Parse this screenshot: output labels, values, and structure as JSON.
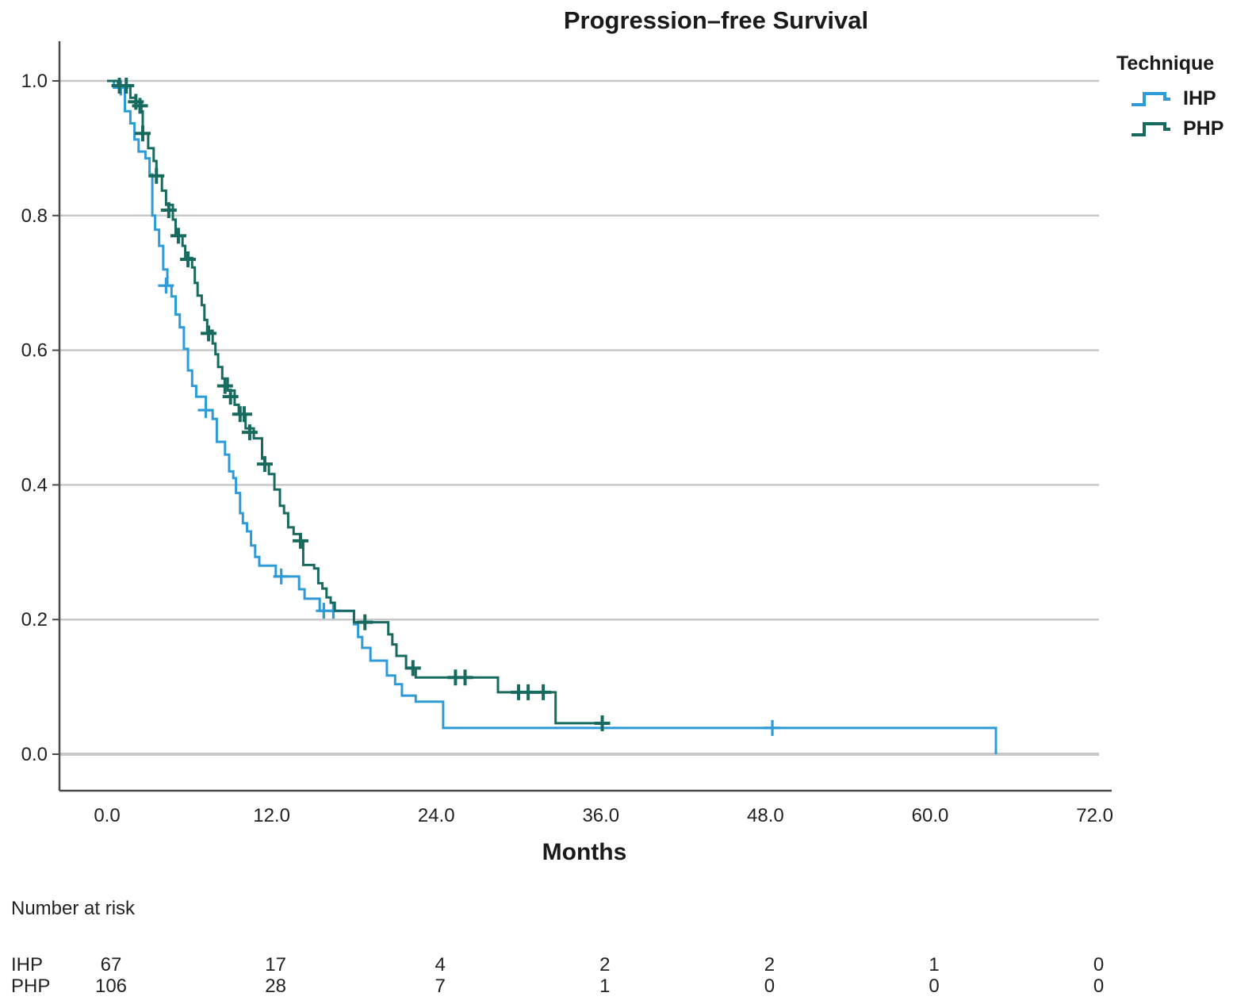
{
  "title": "Progression–free Survival",
  "legend": {
    "title": "Technique",
    "items": [
      {
        "label": "IHP",
        "color": "#2e9bd9"
      },
      {
        "label": "PHP",
        "color": "#176a5e"
      }
    ]
  },
  "chart_data": {
    "type": "line",
    "subtype": "kaplan-meier-step",
    "title": "Progression–free Survival",
    "xlabel": "Months",
    "ylabel": "",
    "xlim": [
      0,
      72
    ],
    "ylim": [
      0.0,
      1.0
    ],
    "xticks": [
      0,
      12,
      24,
      36,
      48,
      60,
      72
    ],
    "xtick_labels": [
      "0.0",
      "12.0",
      "24.0",
      "36.0",
      "48.0",
      "60.0",
      "72.0"
    ],
    "yticks": [
      0.0,
      0.2,
      0.4,
      0.6,
      0.8,
      1.0
    ],
    "ytick_labels": [
      "0.0",
      "0.2",
      "0.4",
      "0.6",
      "0.8",
      "1.0"
    ],
    "grid": "horizontal",
    "grid_color": "#c8c8c8",
    "axis_color": "#4a4a4a",
    "legend_position": "top-right",
    "series": [
      {
        "name": "IHP",
        "color": "#2e9bd9",
        "censor_marker": "plus",
        "steps": [
          [
            0,
            1.0
          ],
          [
            0.5,
            0.99
          ],
          [
            1.3,
            0.955
          ],
          [
            1.7,
            0.937
          ],
          [
            2.0,
            0.913
          ],
          [
            2.3,
            0.895
          ],
          [
            2.8,
            0.885
          ],
          [
            3.1,
            0.861
          ],
          [
            3.3,
            0.8
          ],
          [
            3.5,
            0.779
          ],
          [
            3.8,
            0.755
          ],
          [
            4.1,
            0.72
          ],
          [
            4.4,
            0.696
          ],
          [
            4.7,
            0.68
          ],
          [
            5.0,
            0.653
          ],
          [
            5.3,
            0.634
          ],
          [
            5.6,
            0.602
          ],
          [
            5.9,
            0.57
          ],
          [
            6.2,
            0.547
          ],
          [
            6.5,
            0.531
          ],
          [
            7.2,
            0.511
          ],
          [
            7.7,
            0.498
          ],
          [
            8.0,
            0.464
          ],
          [
            8.6,
            0.445
          ],
          [
            8.9,
            0.42
          ],
          [
            9.2,
            0.41
          ],
          [
            9.4,
            0.388
          ],
          [
            9.7,
            0.358
          ],
          [
            9.9,
            0.343
          ],
          [
            10.2,
            0.331
          ],
          [
            10.5,
            0.31
          ],
          [
            10.8,
            0.293
          ],
          [
            11.1,
            0.28
          ],
          [
            12.3,
            0.264
          ],
          [
            14.0,
            0.245
          ],
          [
            14.4,
            0.231
          ],
          [
            15.5,
            0.213
          ],
          [
            18.0,
            0.193
          ],
          [
            18.3,
            0.174
          ],
          [
            18.6,
            0.158
          ],
          [
            19.2,
            0.139
          ],
          [
            20.4,
            0.117
          ],
          [
            21.0,
            0.104
          ],
          [
            21.5,
            0.087
          ],
          [
            22.5,
            0.078
          ],
          [
            24.5,
            0.039
          ],
          [
            64.8,
            0.0
          ]
        ],
        "censors": [
          [
            1.0,
            0.99
          ],
          [
            4.3,
            0.696
          ],
          [
            7.2,
            0.511
          ],
          [
            12.7,
            0.264
          ],
          [
            15.8,
            0.213
          ],
          [
            16.5,
            0.213
          ],
          [
            48.5,
            0.039
          ]
        ]
      },
      {
        "name": "PHP",
        "color": "#176a5e",
        "censor_marker": "plus",
        "steps": [
          [
            0,
            1.0
          ],
          [
            0.8,
            0.993
          ],
          [
            1.7,
            0.975
          ],
          [
            2.1,
            0.969
          ],
          [
            2.5,
            0.955
          ],
          [
            2.6,
            0.922
          ],
          [
            3.0,
            0.9
          ],
          [
            3.4,
            0.881
          ],
          [
            3.6,
            0.859
          ],
          [
            4.0,
            0.837
          ],
          [
            4.3,
            0.816
          ],
          [
            4.8,
            0.794
          ],
          [
            5.0,
            0.77
          ],
          [
            5.5,
            0.755
          ],
          [
            5.7,
            0.737
          ],
          [
            6.2,
            0.723
          ],
          [
            6.4,
            0.7
          ],
          [
            6.6,
            0.681
          ],
          [
            6.9,
            0.667
          ],
          [
            7.1,
            0.645
          ],
          [
            7.3,
            0.629
          ],
          [
            7.7,
            0.61
          ],
          [
            7.9,
            0.594
          ],
          [
            8.1,
            0.575
          ],
          [
            8.4,
            0.558
          ],
          [
            8.8,
            0.54
          ],
          [
            9.3,
            0.519
          ],
          [
            9.6,
            0.505
          ],
          [
            10.1,
            0.484
          ],
          [
            10.7,
            0.469
          ],
          [
            11.3,
            0.439
          ],
          [
            11.5,
            0.431
          ],
          [
            11.8,
            0.416
          ],
          [
            12.2,
            0.393
          ],
          [
            12.6,
            0.369
          ],
          [
            12.9,
            0.358
          ],
          [
            13.2,
            0.337
          ],
          [
            13.6,
            0.327
          ],
          [
            14.1,
            0.317
          ],
          [
            14.3,
            0.281
          ],
          [
            15.1,
            0.276
          ],
          [
            15.4,
            0.254
          ],
          [
            15.7,
            0.246
          ],
          [
            16.0,
            0.233
          ],
          [
            16.3,
            0.225
          ],
          [
            16.6,
            0.213
          ],
          [
            18.0,
            0.196
          ],
          [
            20.5,
            0.178
          ],
          [
            20.8,
            0.163
          ],
          [
            21.1,
            0.146
          ],
          [
            21.8,
            0.128
          ],
          [
            22.5,
            0.114
          ],
          [
            28.5,
            0.092
          ],
          [
            32.7,
            0.046
          ],
          [
            36.5,
            0.046
          ]
        ],
        "censors": [
          [
            0.9,
            0.993
          ],
          [
            1.4,
            0.993
          ],
          [
            2.1,
            0.969
          ],
          [
            2.4,
            0.963
          ],
          [
            2.6,
            0.922
          ],
          [
            3.6,
            0.859
          ],
          [
            4.5,
            0.808
          ],
          [
            5.2,
            0.77
          ],
          [
            5.9,
            0.735
          ],
          [
            7.4,
            0.625
          ],
          [
            8.6,
            0.547
          ],
          [
            9.0,
            0.531
          ],
          [
            9.7,
            0.505
          ],
          [
            10.0,
            0.505
          ],
          [
            10.4,
            0.478
          ],
          [
            11.5,
            0.431
          ],
          [
            14.1,
            0.317
          ],
          [
            18.8,
            0.196
          ],
          [
            22.3,
            0.128
          ],
          [
            25.4,
            0.114
          ],
          [
            26.1,
            0.114
          ],
          [
            30.0,
            0.092
          ],
          [
            30.7,
            0.092
          ],
          [
            31.8,
            0.092
          ],
          [
            36.1,
            0.046
          ]
        ]
      }
    ]
  },
  "at_risk": {
    "heading": "Number at risk",
    "columns_months": [
      0,
      12,
      24,
      36,
      48,
      60,
      72
    ],
    "rows": [
      {
        "label": "IHP",
        "values": [
          "67",
          "17",
          "4",
          "2",
          "2",
          "1",
          "0"
        ]
      },
      {
        "label": "PHP",
        "values": [
          "106",
          "28",
          "7",
          "1",
          "0",
          "0",
          "0"
        ]
      }
    ]
  }
}
